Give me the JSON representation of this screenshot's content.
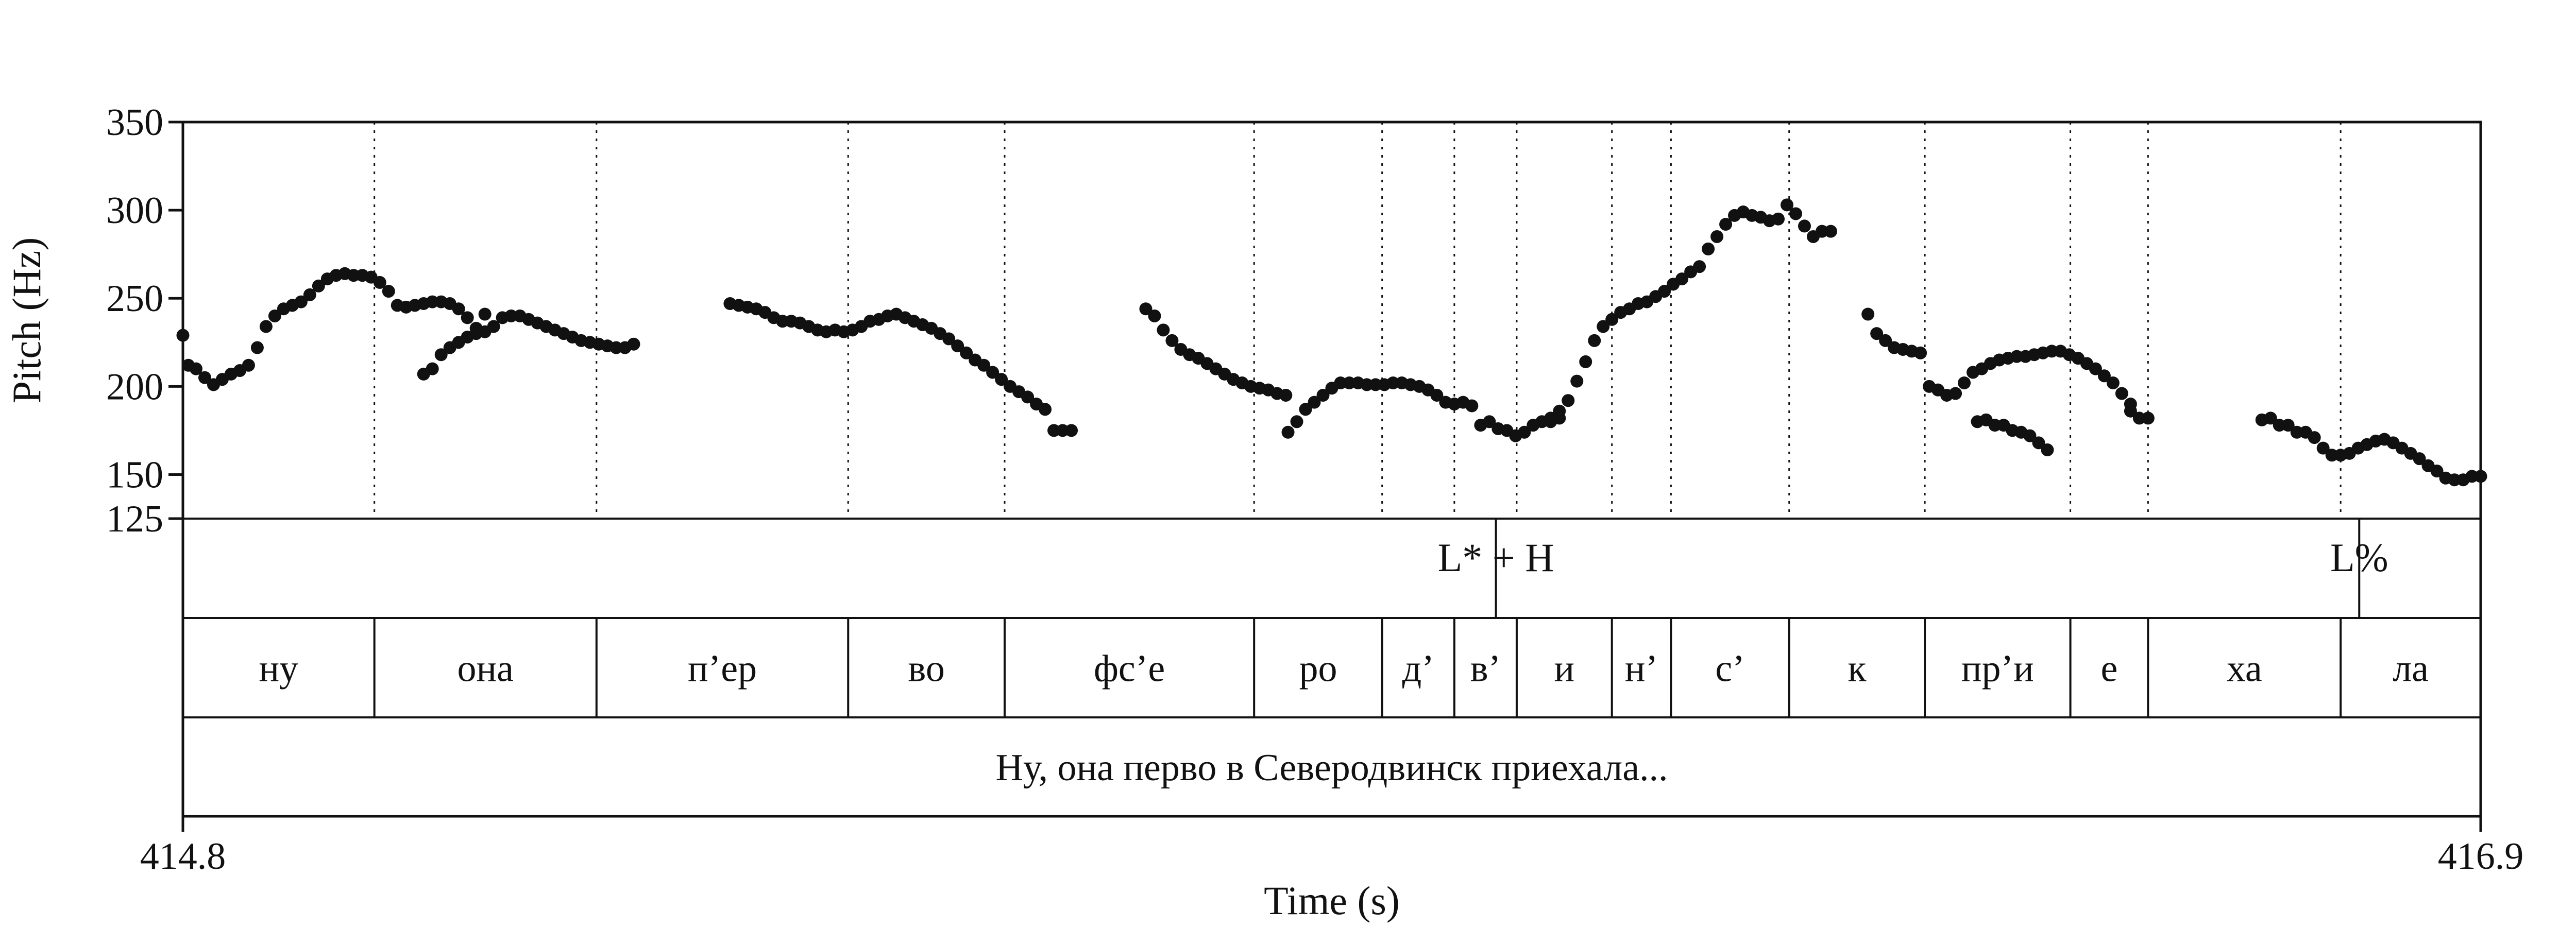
{
  "chart_data": {
    "type": "scatter",
    "title": "",
    "xlabel": "Time (s)",
    "ylabel": "Pitch (Hz)",
    "xlim": [
      414.8,
      416.9
    ],
    "ylim": [
      125,
      350
    ],
    "x_tick_labels": [
      "414.8",
      "416.9"
    ],
    "y_ticks": [
      125,
      150,
      200,
      250,
      300,
      350
    ],
    "y_tick_labels": [
      "125",
      "150",
      "200",
      "250",
      "300",
      "350"
    ],
    "series": [
      {
        "color": "#111111",
        "segments": [
          {
            "x": [
              414.8,
              414.805,
              414.812,
              414.82,
              414.828,
              414.836,
              414.844,
              414.852,
              414.86,
              414.868,
              414.876,
              414.884,
              414.892,
              414.9,
              414.908,
              414.916,
              414.924,
              414.932,
              414.94,
              414.948,
              414.956,
              414.964,
              414.972,
              414.98,
              414.988,
              414.996,
              415.004,
              415.012,
              415.02,
              415.028,
              415.036,
              415.044,
              415.052,
              415.06,
              415.068,
              415.076
            ],
            "y": [
              229,
              212,
              210,
              205,
              201,
              204,
              207,
              209,
              212,
              222,
              234,
              240,
              244,
              246,
              248,
              252,
              257,
              261,
              263,
              264,
              263,
              263,
              262,
              259,
              254,
              246,
              245,
              246,
              247,
              248,
              248,
              247,
              244,
              239,
              233,
              241
            ]
          },
          {
            "x": [
              415.02,
              415.028,
              415.036,
              415.044,
              415.052,
              415.06,
              415.068,
              415.076,
              415.084,
              415.092,
              415.1,
              415.108,
              415.116,
              415.124,
              415.132,
              415.14,
              415.148,
              415.156,
              415.164,
              415.172,
              415.18,
              415.188,
              415.196,
              415.204,
              415.212
            ],
            "y": [
              207,
              210,
              218,
              222,
              225,
              228,
              230,
              231,
              234,
              239,
              240,
              240,
              238,
              236,
              234,
              232,
              230,
              228,
              226,
              225,
              224,
              223,
              222,
              222,
              224
            ]
          },
          {
            "x": [
              415.3,
              415.308,
              415.316,
              415.324,
              415.332,
              415.34,
              415.348,
              415.356,
              415.364,
              415.372,
              415.38,
              415.388,
              415.396,
              415.404,
              415.412,
              415.42,
              415.428,
              415.436,
              415.444,
              415.452,
              415.46,
              415.468,
              415.476,
              415.484,
              415.492,
              415.5,
              415.508,
              415.516,
              415.524,
              415.532,
              415.54,
              415.548,
              415.556,
              415.564,
              415.572,
              415.58,
              415.588,
              415.596,
              415.604,
              415.612
            ],
            "y": [
              247,
              246,
              245,
              244,
              242,
              239,
              237,
              237,
              236,
              234,
              232,
              231,
              232,
              231,
              232,
              234,
              237,
              238,
              240,
              241,
              239,
              237,
              235,
              233,
              230,
              227,
              223,
              219,
              215,
              212,
              208,
              204,
              200,
              197,
              194,
              190,
              187,
              175,
              175,
              175
            ]
          },
          {
            "x": [
              415.68,
              415.688,
              415.696,
              415.704,
              415.712,
              415.72,
              415.728,
              415.736,
              415.744,
              415.752,
              415.76,
              415.768,
              415.776,
              415.784,
              415.792,
              415.8,
              415.808
            ],
            "y": [
              244,
              240,
              232,
              226,
              221,
              218,
              216,
              213,
              210,
              207,
              204,
              202,
              200,
              199,
              198,
              196,
              195
            ]
          },
          {
            "x": [
              415.81,
              415.818,
              415.826,
              415.834,
              415.842,
              415.85,
              415.858,
              415.866,
              415.874,
              415.882,
              415.89,
              415.898,
              415.906,
              415.914,
              415.922,
              415.93,
              415.938,
              415.946,
              415.954,
              415.962,
              415.97,
              415.978,
              415.986,
              415.994,
              416.002,
              416.01,
              416.018,
              416.026,
              416.034,
              416.042,
              416.05,
              416.058
            ],
            "y": [
              174,
              180,
              187,
              191,
              195,
              199,
              202,
              202,
              202,
              201,
              201,
              201,
              202,
              202,
              201,
              200,
              198,
              195,
              191,
              190,
              191,
              189,
              178,
              180,
              176,
              175,
              172,
              174,
              178,
              180,
              180,
              182
            ]
          },
          {
            "x": [
              416.05,
              416.058,
              416.066,
              416.074,
              416.082,
              416.09,
              416.098,
              416.106,
              416.114,
              416.122,
              416.13,
              416.138,
              416.146,
              416.154,
              416.162,
              416.17,
              416.178,
              416.186,
              416.194,
              416.202,
              416.21,
              416.218,
              416.226,
              416.234,
              416.242,
              416.25,
              416.258,
              416.266,
              416.274,
              416.282,
              416.29,
              416.298,
              416.306
            ],
            "y": [
              182,
              186,
              192,
              203,
              214,
              226,
              234,
              238,
              242,
              244,
              247,
              248,
              251,
              254,
              258,
              261,
              265,
              268,
              278,
              285,
              292,
              297,
              299,
              297,
              296,
              294,
              295,
              303,
              298,
              291,
              285,
              288,
              288
            ]
          },
          {
            "x": [
              416.34,
              416.348,
              416.356,
              416.364,
              416.372,
              416.38,
              416.388,
              416.396,
              416.404,
              416.412,
              416.42,
              416.428,
              416.436,
              416.444,
              416.452,
              416.46,
              416.468,
              416.476,
              416.484,
              416.492,
              416.5,
              416.508,
              416.516,
              416.524,
              416.532,
              416.54,
              416.548,
              416.556,
              416.564,
              416.572,
              416.58
            ],
            "y": [
              241,
              230,
              226,
              222,
              221,
              220,
              219,
              200,
              198,
              195,
              196,
              202,
              208,
              210,
              213,
              215,
              216,
              217,
              217,
              218,
              219,
              220,
              220,
              218,
              216,
              213,
              210,
              206,
              202,
              196,
              190
            ]
          },
          {
            "x": [
              416.58,
              416.588,
              416.596
            ],
            "y": [
              186,
              182,
              182
            ]
          },
          {
            "x": [
              416.44,
              416.448,
              416.456,
              416.464,
              416.472,
              416.48,
              416.488,
              416.496,
              416.504
            ],
            "y": [
              180,
              181,
              178,
              178,
              175,
              174,
              172,
              168,
              164
            ]
          },
          {
            "x": [
              416.7,
              416.708,
              416.716,
              416.724,
              416.732,
              416.74,
              416.748,
              416.756,
              416.764,
              416.772,
              416.78,
              416.788,
              416.796,
              416.804,
              416.812,
              416.82,
              416.828,
              416.836,
              416.844,
              416.852,
              416.86,
              416.868,
              416.876,
              416.884,
              416.892,
              416.9
            ],
            "y": [
              181,
              182,
              178,
              178,
              174,
              174,
              171,
              165,
              161,
              161,
              162,
              165,
              167,
              169,
              170,
              168,
              165,
              162,
              159,
              155,
              152,
              148,
              147,
              147,
              149,
              149
            ]
          }
        ]
      }
    ],
    "boundaries": [
      414.975,
      415.178,
      415.408,
      415.551,
      415.779,
      415.896,
      415.962,
      416.019,
      416.106,
      416.16,
      416.268,
      416.392,
      416.525,
      416.596,
      416.772
    ],
    "tiers": [
      {
        "name": "tones",
        "labels": [
          {
            "text": "L* + H",
            "time": 416.0
          },
          {
            "text": "L%",
            "time": 416.789
          }
        ]
      },
      {
        "name": "syllables",
        "intervals": [
          {
            "text": "ну",
            "start": 414.8,
            "end": 414.975
          },
          {
            "text": "она",
            "start": 414.975,
            "end": 415.178
          },
          {
            "text": "п’ер",
            "start": 415.178,
            "end": 415.408
          },
          {
            "text": "во",
            "start": 415.408,
            "end": 415.551
          },
          {
            "text": "фс’е",
            "start": 415.551,
            "end": 415.779
          },
          {
            "text": "ро",
            "start": 415.779,
            "end": 415.896
          },
          {
            "text": "д’",
            "start": 415.896,
            "end": 415.962
          },
          {
            "text": "в’",
            "start": 415.962,
            "end": 416.019
          },
          {
            "text": "и",
            "start": 416.019,
            "end": 416.106
          },
          {
            "text": "н’",
            "start": 416.106,
            "end": 416.16
          },
          {
            "text": "с’",
            "start": 416.16,
            "end": 416.268
          },
          {
            "text": "к",
            "start": 416.268,
            "end": 416.392
          },
          {
            "text": "пр’и",
            "start": 416.392,
            "end": 416.525
          },
          {
            "text": "е",
            "start": 416.525,
            "end": 416.596
          },
          {
            "text": "ха",
            "start": 416.596,
            "end": 416.772
          },
          {
            "text": "ла",
            "start": 416.772,
            "end": 416.9
          }
        ]
      },
      {
        "name": "sentence",
        "intervals": [
          {
            "text": "Ну, она перво в Северодвинск приехала...",
            "start": 414.8,
            "end": 416.9
          }
        ]
      }
    ],
    "grid": false,
    "legend": "none"
  }
}
